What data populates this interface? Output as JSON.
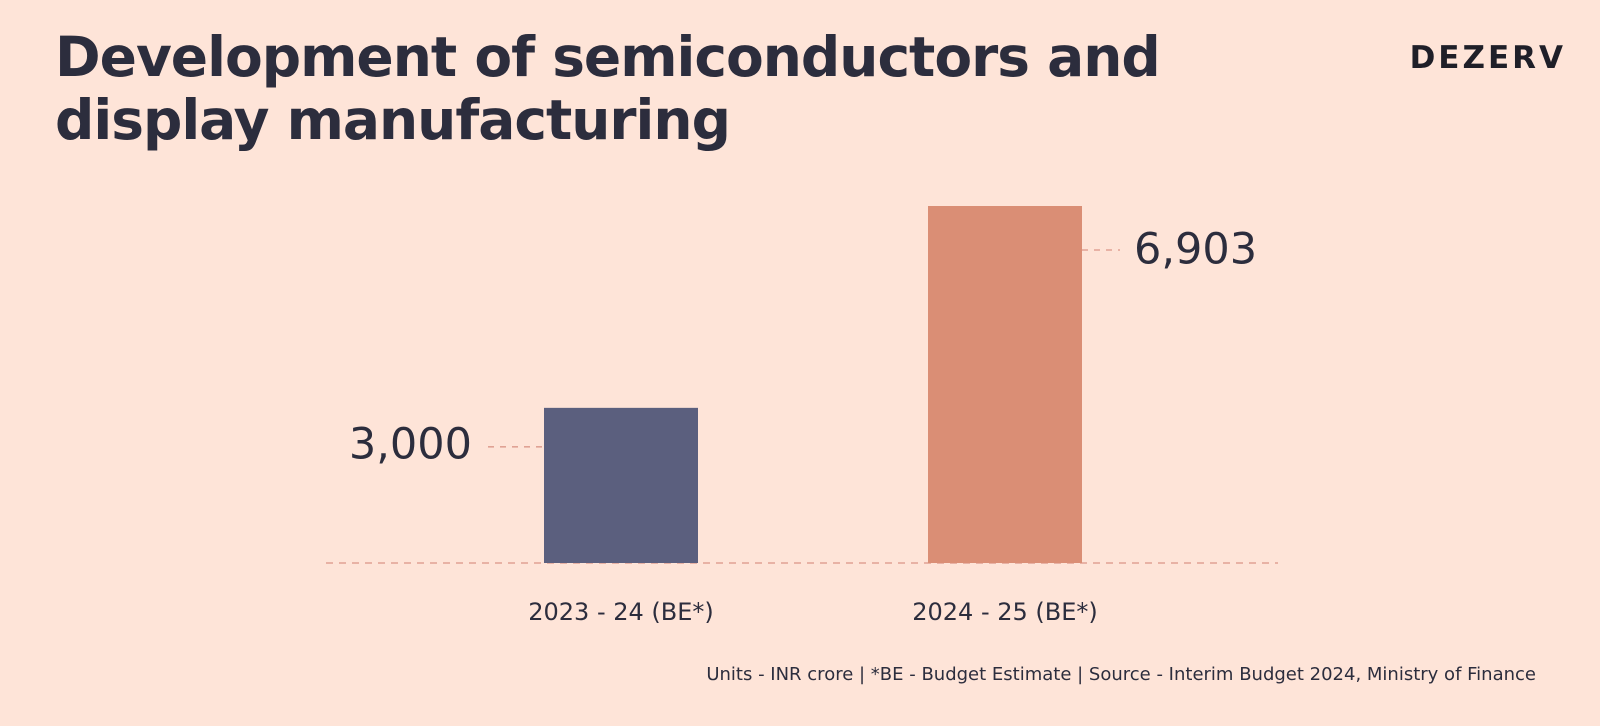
{
  "header": {
    "title_line1": "Development of semiconductors and",
    "title_line2": "display manufacturing",
    "logo": "DEZERV"
  },
  "footnote": "Units - INR crore | *BE - Budget Estimate | Source - Interim Budget 2024, Ministry of Finance",
  "colors": {
    "background": "#fee4d8",
    "bar_2023": "#5b5f7e",
    "bar_2024": "#da8e75",
    "guide": "#e0a294",
    "text": "#2c2d3d"
  },
  "chart_data": {
    "type": "bar",
    "title": "Development of semiconductors and display manufacturing",
    "categories": [
      "2023 - 24 (BE*)",
      "2024 - 25 (BE*)"
    ],
    "values": [
      3000,
      6903
    ],
    "value_labels": [
      "3,000",
      "6,903"
    ],
    "ylim": [
      0,
      7000
    ],
    "grid": false,
    "legend": "none",
    "unit": "INR crore"
  }
}
